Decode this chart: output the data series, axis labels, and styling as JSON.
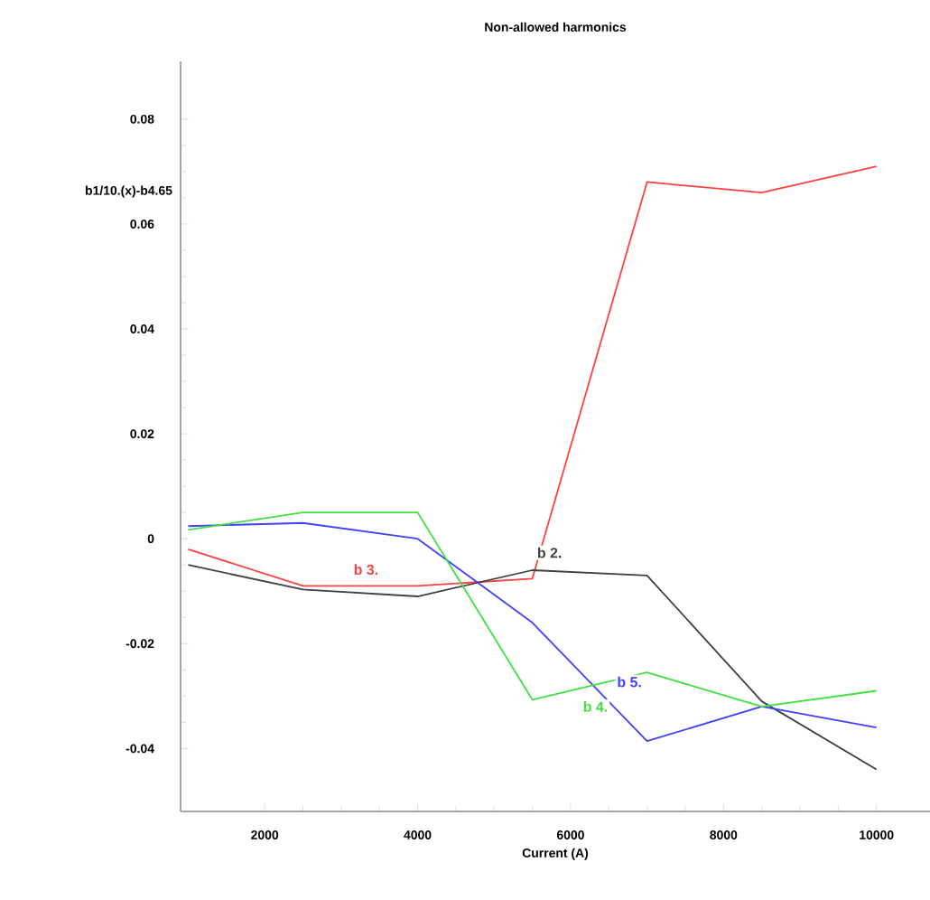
{
  "chart_data": {
    "type": "line",
    "title": "Non-allowed harmonics",
    "xlabel": "Current (A)",
    "ylabel": "b1/10.(x)-b4.65",
    "x": [
      1000,
      2500,
      4000,
      5500,
      7000,
      8500,
      10000
    ],
    "series": [
      {
        "name": "b 3.",
        "color": "#ff4040",
        "values": [
          -0.002,
          -0.009,
          -0.009,
          -0.0076,
          0.068,
          0.066,
          0.071
        ]
      },
      {
        "name": "b 2.",
        "color": "#404040",
        "values": [
          -0.005,
          -0.0097,
          -0.011,
          -0.006,
          -0.007,
          -0.031,
          -0.044
        ]
      },
      {
        "name": "b 5.",
        "color": "#4040ff",
        "values": [
          0.0024,
          0.003,
          0.0,
          -0.016,
          -0.0386,
          -0.032,
          -0.036
        ]
      },
      {
        "name": "b 4.",
        "color": "#40e040",
        "values": [
          0.0017,
          0.005,
          0.005,
          -0.0307,
          -0.0255,
          -0.032,
          -0.029
        ]
      }
    ],
    "xlim": [
      900,
      10700
    ],
    "ylim": [
      -0.052,
      0.091
    ],
    "xticks": [
      2000,
      4000,
      6000,
      8000,
      10000
    ],
    "yticks": [
      -0.04,
      -0.02,
      {
        "value": 0,
        "label": "0"
      },
      0.02,
      0.04,
      0.06,
      0.08
    ],
    "grid": false,
    "marker": "none",
    "line_style": "solid"
  }
}
